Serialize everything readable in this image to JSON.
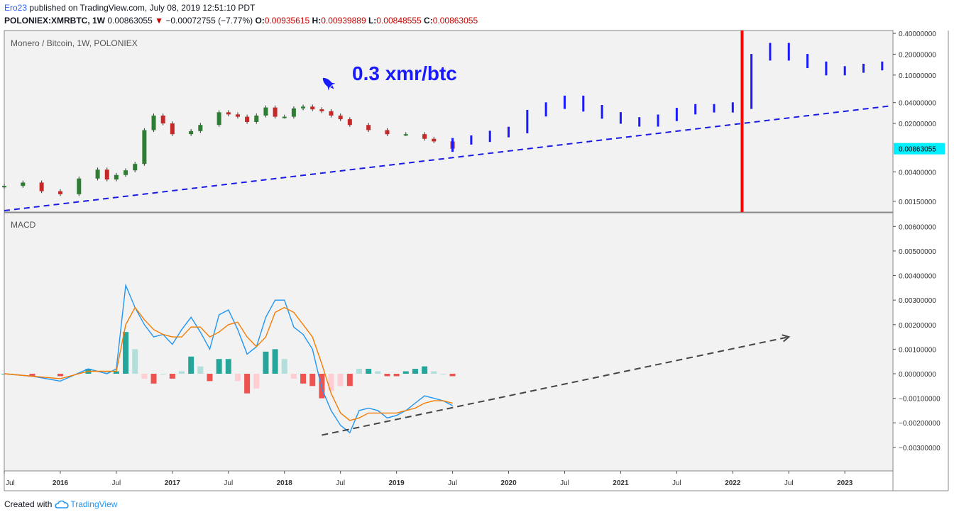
{
  "header": {
    "author": "Ero23",
    "published": "published on TradingView.com, July 08, 2019 12:51:10 PDT",
    "symbol": "POLONIEX:XMRBTC, 1W",
    "last": "0.00863055",
    "change_arrow": "▼",
    "change": "−0.00072755 (−7.77%)",
    "o_label": "O:",
    "o_value": "0.00935615",
    "h_label": "H:",
    "h_value": "0.00939889",
    "l_label": "L:",
    "l_value": "0.00848555",
    "c_label": "C:",
    "c_value": "0.00863055"
  },
  "price_pane": {
    "title": "Monero / Bitcoin, 1W, POLONIEX",
    "annotation": "0.3 xmr/btc",
    "annotation_icon": "rocket-icon",
    "last_price_label": "0.00863055",
    "y_ticks": [
      "0.40000000",
      "0.20000000",
      "0.10000000",
      "0.04000000",
      "0.02000000",
      "0.00863055",
      "0.00400000",
      "0.00150000"
    ]
  },
  "macd_pane": {
    "title": "MACD",
    "y_ticks": [
      "0.00600000",
      "0.00500000",
      "0.00400000",
      "0.00300000",
      "0.00200000",
      "0.00100000",
      "0.00000000",
      "−0.00100000",
      "−0.00200000",
      "−0.00300000"
    ]
  },
  "x_axis": {
    "ticks": [
      "Jul",
      "2016",
      "Jul",
      "2017",
      "Jul",
      "2018",
      "Jul",
      "2019",
      "Jul",
      "2020",
      "Jul",
      "2021",
      "Jul",
      "2022",
      "Jul",
      "2023"
    ]
  },
  "footer": {
    "created_with": "Created with",
    "brand": "TradingView"
  },
  "colors": {
    "up": "#2e7d32",
    "down": "#c62828",
    "projection": "#1a1aff",
    "trendline": "#1a1ae6",
    "red_marker": "#ff0000",
    "macd_line": "#2196f3",
    "signal_line": "#f57c00",
    "hist_pos_strong": "#26a69a",
    "hist_pos_weak": "#b2dfdb",
    "hist_neg_strong": "#ef5350",
    "hist_neg_weak": "#ffcdd2",
    "last_price_bg": "#00f0ff",
    "pane_bg": "#f2f2f2"
  },
  "chart_data": [
    {
      "type": "line",
      "title": "Monero / Bitcoin, 1W, POLONIEX",
      "y_scale": "log",
      "ylim": [
        0.0011,
        0.42
      ],
      "xlim": [
        "2015-07",
        "2023-06"
      ],
      "series": [
        {
          "name": "",
          "style": "candles",
          "x": [
            "2015-07",
            "2015-09",
            "2015-11",
            "2016-01",
            "2016-03",
            "2016-05",
            "2016-06",
            "2016-07",
            "2016-08",
            "2016-09",
            "2016-10",
            "2016-11",
            "2016-12",
            "2017-01",
            "2017-03",
            "2017-04",
            "2017-06",
            "2017-07",
            "2017-08",
            "2017-09",
            "2017-10",
            "2017-11",
            "2017-12",
            "2018-01",
            "2018-02",
            "2018-03",
            "2018-04",
            "2018-05",
            "2018-06",
            "2018-07",
            "2018-08",
            "2018-10",
            "2018-12",
            "2019-02",
            "2019-04",
            "2019-05",
            "2019-07"
          ],
          "values": [
            0.0025,
            0.0028,
            0.0021,
            0.0019,
            0.0032,
            0.0043,
            0.0031,
            0.0036,
            0.0042,
            0.0052,
            0.016,
            0.026,
            0.02,
            0.014,
            0.0155,
            0.019,
            0.029,
            0.027,
            0.025,
            0.021,
            0.026,
            0.034,
            0.025,
            0.025,
            0.033,
            0.035,
            0.032,
            0.03,
            0.026,
            0.023,
            0.019,
            0.016,
            0.014,
            0.014,
            0.012,
            0.011,
            0.00863
          ]
        },
        {
          "name": "",
          "style": "projection",
          "x": [
            "2019-07",
            "2019-09",
            "2019-11",
            "2020-01",
            "2020-03",
            "2020-05",
            "2020-07",
            "2020-09",
            "2020-11",
            "2021-01",
            "2021-03",
            "2021-05",
            "2021-07",
            "2021-09",
            "2021-11",
            "2022-01",
            "2022-03",
            "2022-05",
            "2022-07",
            "2022-09",
            "2022-11",
            "2023-01",
            "2023-03",
            "2023-05"
          ],
          "values": [
            0.011,
            0.012,
            0.014,
            0.016,
            0.028,
            0.036,
            0.045,
            0.033,
            0.026,
            0.022,
            0.02,
            0.024,
            0.03,
            0.034,
            0.032,
            0.036,
            0.18,
            0.26,
            0.18,
            0.14,
            0.11,
            0.12,
            0.13,
            0.14
          ]
        }
      ],
      "trendline": {
        "x": [
          "2015-07",
          "2023-06"
        ],
        "y": [
          0.0011,
          0.036
        ]
      },
      "marker_vertical_line": "2022-02"
    },
    {
      "type": "line",
      "title": "MACD",
      "ylim": [
        -0.0039,
        0.0065
      ],
      "series": [
        {
          "name": "",
          "x": [
            "2015-07",
            "2015-10",
            "2016-01",
            "2016-04",
            "2016-06",
            "2016-07",
            "2016-08",
            "2016-09",
            "2016-10",
            "2016-11",
            "2016-12",
            "2017-01",
            "2017-02",
            "2017-03",
            "2017-04",
            "2017-05",
            "2017-06",
            "2017-07",
            "2017-08",
            "2017-09",
            "2017-10",
            "2017-11",
            "2017-12",
            "2018-01",
            "2018-02",
            "2018-03",
            "2018-04",
            "2018-05",
            "2018-06",
            "2018-07",
            "2018-08",
            "2018-09",
            "2018-10",
            "2018-11",
            "2018-12",
            "2019-01",
            "2019-02",
            "2019-03",
            "2019-04",
            "2019-05",
            "2019-06",
            "2019-07"
          ],
          "values": [
            0.0,
            -0.0001,
            -0.0003,
            0.0002,
            0.0,
            0.0002,
            0.0036,
            0.0027,
            0.002,
            0.0015,
            0.0016,
            0.0012,
            0.0018,
            0.0023,
            0.0017,
            0.001,
            0.0024,
            0.0026,
            0.0018,
            0.0008,
            0.0011,
            0.0023,
            0.003,
            0.003,
            0.0019,
            0.0016,
            0.001,
            -0.0006,
            -0.0015,
            -0.0021,
            -0.0024,
            -0.0015,
            -0.0014,
            -0.0015,
            -0.0018,
            -0.0017,
            -0.0015,
            -0.0012,
            -0.0009,
            -0.001,
            -0.0011,
            -0.0013
          ]
        },
        {
          "name": "",
          "x": [
            "2015-07",
            "2015-10",
            "2016-01",
            "2016-04",
            "2016-06",
            "2016-07",
            "2016-08",
            "2016-09",
            "2016-10",
            "2016-11",
            "2016-12",
            "2017-01",
            "2017-02",
            "2017-03",
            "2017-04",
            "2017-05",
            "2017-06",
            "2017-07",
            "2017-08",
            "2017-09",
            "2017-10",
            "2017-11",
            "2017-12",
            "2018-01",
            "2018-02",
            "2018-03",
            "2018-04",
            "2018-05",
            "2018-06",
            "2018-07",
            "2018-08",
            "2018-09",
            "2018-10",
            "2018-11",
            "2018-12",
            "2019-01",
            "2019-02",
            "2019-03",
            "2019-04",
            "2019-05",
            "2019-06",
            "2019-07"
          ],
          "values": [
            0.0,
            -0.0001,
            -0.0002,
            0.0001,
            0.0001,
            0.0001,
            0.002,
            0.0027,
            0.0022,
            0.0018,
            0.0016,
            0.0015,
            0.0015,
            0.0019,
            0.0019,
            0.0015,
            0.0017,
            0.002,
            0.0021,
            0.0015,
            0.0011,
            0.0015,
            0.0025,
            0.0027,
            0.0025,
            0.002,
            0.0015,
            0.0004,
            -0.0008,
            -0.0016,
            -0.0019,
            -0.0018,
            -0.0016,
            -0.0016,
            -0.0016,
            -0.0016,
            -0.0015,
            -0.0014,
            -0.0012,
            -0.0011,
            -0.0011,
            -0.0012
          ]
        }
      ],
      "histogram": {
        "x": [
          "2015-07",
          "2015-10",
          "2016-01",
          "2016-04",
          "2016-06",
          "2016-07",
          "2016-08",
          "2016-09",
          "2016-10",
          "2016-11",
          "2016-12",
          "2017-01",
          "2017-02",
          "2017-03",
          "2017-04",
          "2017-05",
          "2017-06",
          "2017-07",
          "2017-08",
          "2017-09",
          "2017-10",
          "2017-11",
          "2017-12",
          "2018-01",
          "2018-02",
          "2018-03",
          "2018-04",
          "2018-05",
          "2018-06",
          "2018-07",
          "2018-08",
          "2018-09",
          "2018-10",
          "2018-11",
          "2018-12",
          "2019-01",
          "2019-02",
          "2019-03",
          "2019-04",
          "2019-05",
          "2019-06",
          "2019-07"
        ],
        "values": [
          0.0,
          -0.0001,
          -0.0001,
          0.0002,
          0.0001,
          0.0001,
          0.0017,
          0.001,
          -0.0002,
          -0.0004,
          0.0,
          -0.0002,
          0.0001,
          0.0007,
          0.0003,
          -0.0003,
          0.0006,
          0.0006,
          -0.0003,
          -0.0008,
          -0.0006,
          0.0009,
          0.001,
          0.0006,
          -0.0002,
          -0.0004,
          -0.0005,
          -0.001,
          -0.0007,
          -0.0005,
          -0.0005,
          0.0002,
          0.0002,
          0.0001,
          -0.0001,
          -0.0001,
          0.0001,
          0.0002,
          0.0003,
          0.0001,
          0.0,
          -0.0001
        ]
      },
      "trend_arrow": {
        "x": [
          "2018-05",
          "2022-07"
        ],
        "y": [
          -0.0025,
          0.0015
        ]
      }
    }
  ]
}
